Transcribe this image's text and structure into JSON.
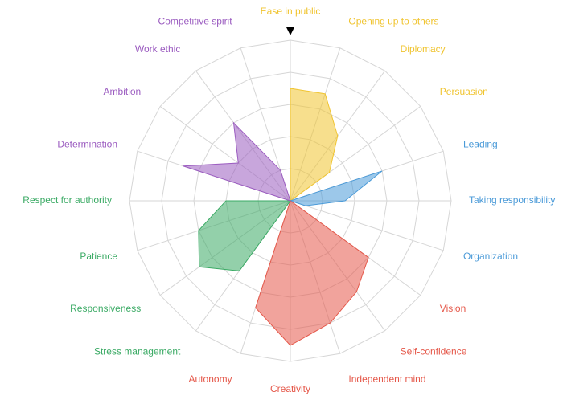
{
  "chart_data": {
    "type": "radar",
    "categories": [
      "Ease in public",
      "Opening up to others",
      "Diplomacy",
      "Persuasion",
      "Leading",
      "Taking responsibility",
      "Organization",
      "Vision",
      "Self-confidence",
      "Independent mind",
      "Creativity",
      "Autonomy",
      "Stress management",
      "Responsiveness",
      "Patience",
      "Respect for authority",
      "Determination",
      "Ambition",
      "Work ethic",
      "Competitive spirit"
    ],
    "series": [
      {
        "color": "#f0c430",
        "values": [
          3.5,
          3.5,
          2.5,
          1.5,
          null,
          null,
          null,
          null,
          null,
          null,
          null,
          null,
          null,
          null,
          null,
          null,
          null,
          null,
          null,
          null
        ]
      },
      {
        "color": "#4a9ad8",
        "values": [
          null,
          null,
          null,
          null,
          3,
          1.7,
          0.5,
          null,
          null,
          null,
          null,
          null,
          null,
          null,
          null,
          null,
          null,
          null,
          null,
          null
        ]
      },
      {
        "color": "#e5584a",
        "values": [
          null,
          null,
          null,
          null,
          null,
          null,
          null,
          3,
          3.5,
          4,
          4.5,
          3.5,
          null,
          null,
          null,
          null,
          null,
          null,
          null,
          null
        ]
      },
      {
        "color": "#3aaa64",
        "values": [
          null,
          null,
          null,
          null,
          null,
          null,
          null,
          null,
          null,
          null,
          null,
          null,
          2.7,
          3.5,
          3,
          2,
          null,
          null,
          null,
          null
        ]
      },
      {
        "color": "#9b5cc0",
        "values": [
          null,
          null,
          null,
          null,
          null,
          null,
          null,
          null,
          null,
          null,
          null,
          null,
          null,
          null,
          null,
          null,
          3.5,
          2,
          3,
          1
        ]
      }
    ],
    "rlim": [
      0,
      5
    ],
    "rticks": [
      1,
      2,
      3,
      4,
      5
    ],
    "grid": true
  }
}
